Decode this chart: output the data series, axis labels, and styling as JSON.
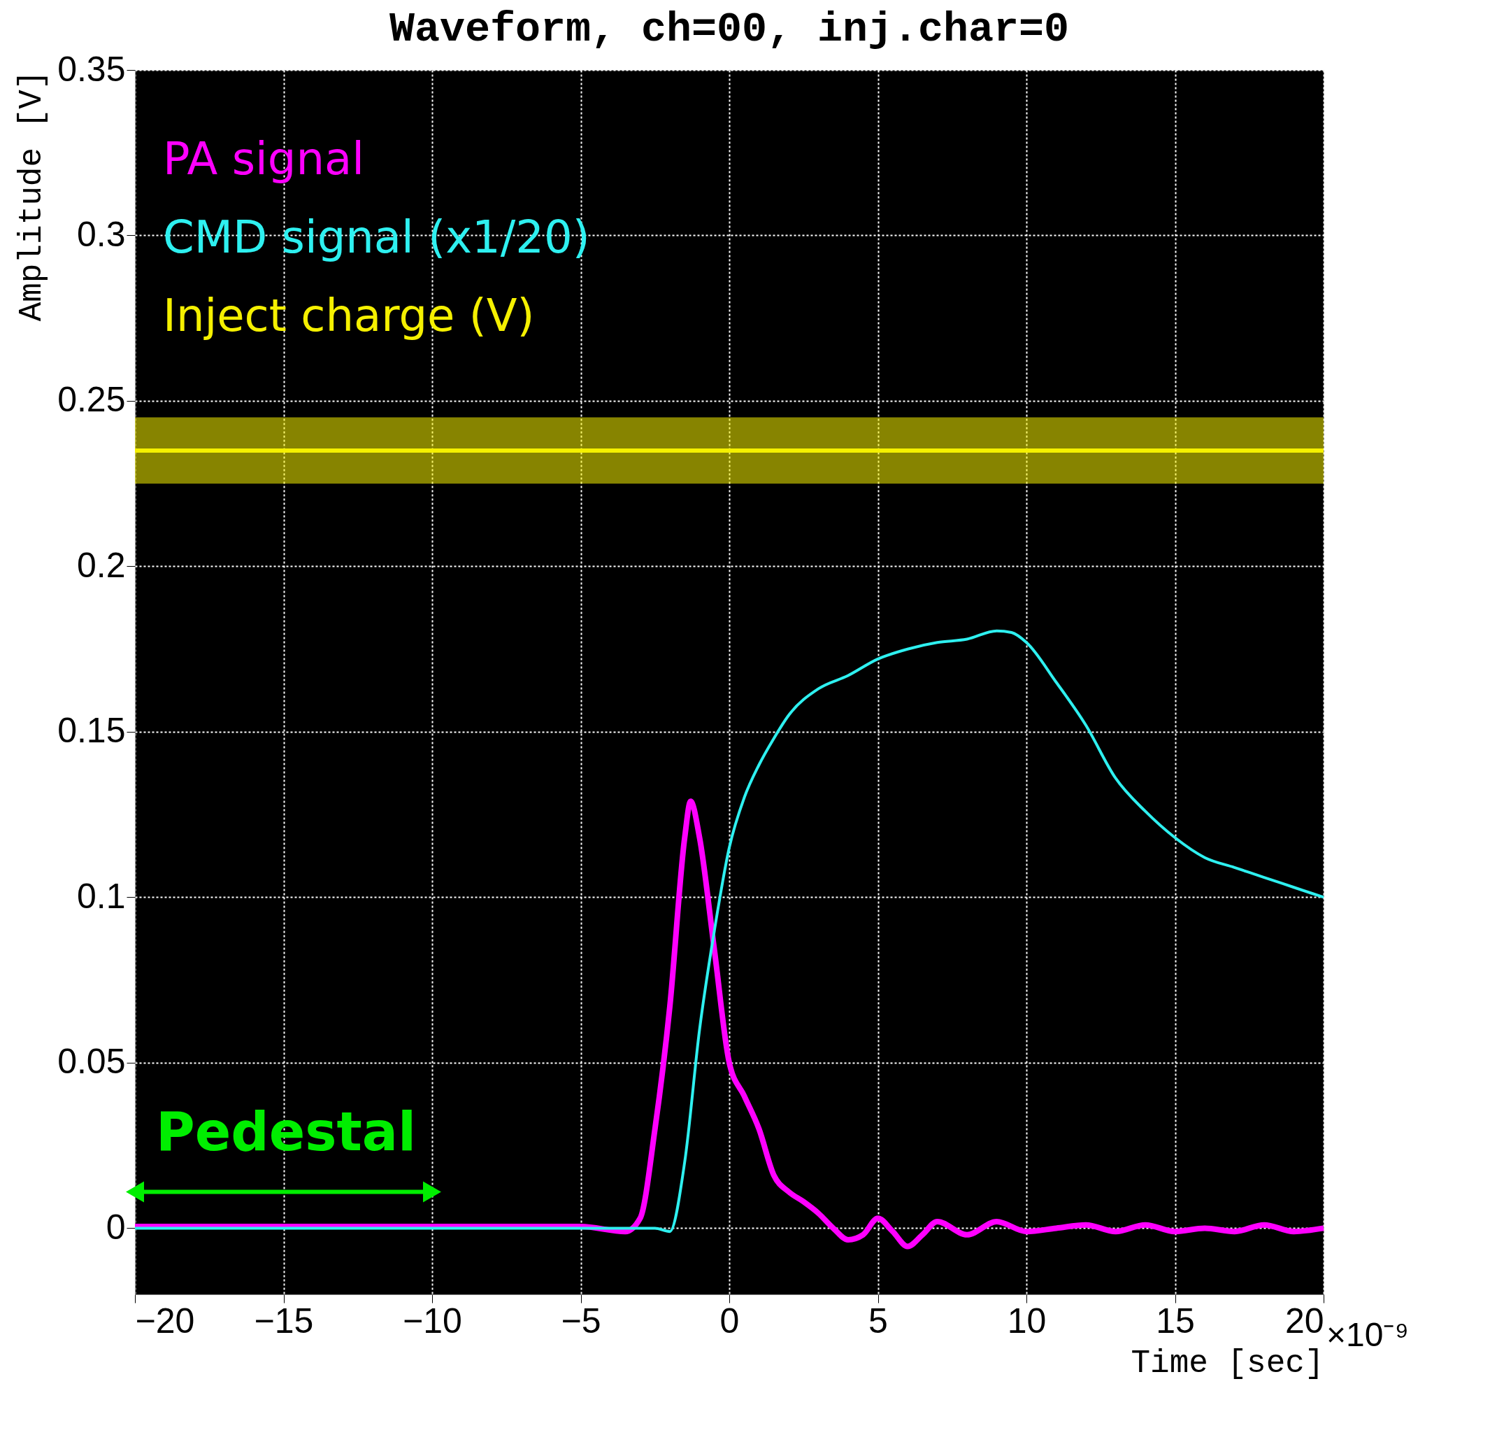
{
  "chart_data": {
    "type": "line",
    "title": "Waveform, ch=00, inj.char=0",
    "xlabel": "Time [sec]",
    "ylabel": "Amplitude [V]",
    "xlim": [
      -20,
      20
    ],
    "xticks": [
      -20,
      -15,
      -10,
      -5,
      0,
      5,
      10,
      15,
      20
    ],
    "ylim": [
      -0.02,
      0.35
    ],
    "yticks": [
      0,
      0.05,
      0.1,
      0.15,
      0.2,
      0.25,
      0.3,
      0.35
    ],
    "grid": true,
    "legend": "top left",
    "series": [
      {
        "name": "PA signal",
        "color": "#ff00ff",
        "x": [
          -20,
          -15,
          -10,
          -5,
          -3.5,
          -3,
          -2.5,
          -2,
          -1.5,
          -1.3,
          -1,
          -0.5,
          0,
          0.5,
          1,
          1.5,
          2,
          2.5,
          3,
          3.5,
          4,
          4.5,
          5,
          5.5,
          6,
          6.5,
          7,
          8,
          9,
          10,
          11,
          12,
          13,
          14,
          15,
          16,
          17,
          18,
          19,
          20
        ],
        "values": [
          0.0005,
          0.0005,
          0.0005,
          0.0005,
          -0.001,
          0.003,
          0.03,
          0.067,
          0.118,
          0.129,
          0.118,
          0.084,
          0.05,
          0.04,
          0.03,
          0.016,
          0.011,
          0.008,
          0.0045,
          0.0,
          -0.0035,
          -0.002,
          0.003,
          -0.001,
          -0.0055,
          -0.002,
          0.002,
          -0.002,
          0.002,
          -0.001,
          0.0,
          0.001,
          -0.001,
          0.001,
          -0.001,
          0.0,
          -0.001,
          0.001,
          -0.001,
          0.0
        ]
      },
      {
        "name": "CMD signal (x1/20)",
        "color": "#2ef0f0",
        "x": [
          -20,
          -10,
          -2.5,
          -2,
          -1.5,
          -1,
          -0.5,
          0,
          0.5,
          1,
          1.5,
          2,
          3,
          4,
          5,
          6,
          7,
          8,
          9,
          9.5,
          10,
          11,
          12,
          13,
          14,
          15,
          16,
          17,
          18,
          19,
          20
        ],
        "values": [
          0,
          0,
          0,
          -0.001,
          0.02,
          0.06,
          0.09,
          0.115,
          0.13,
          0.14,
          0.148,
          0.155,
          0.163,
          0.167,
          0.172,
          0.175,
          0.177,
          0.178,
          0.1805,
          0.18,
          0.177,
          0.165,
          0.152,
          0.136,
          0.126,
          0.118,
          0.112,
          0.109,
          0.106,
          0.103,
          0.1
        ]
      },
      {
        "name": "Inject charge (V)",
        "color": "#f5f000",
        "x": [
          -20,
          20
        ],
        "values": [
          0.235,
          0.235
        ],
        "lower": [
          0.225,
          0.225
        ],
        "upper": [
          0.245,
          0.245
        ]
      },
      {
        "color": "#00ee00",
        "x": [
          -20,
          -10
        ],
        "values": [
          0.011,
          0.011
        ],
        "marker": "triangle"
      }
    ],
    "annotations": [
      "Pedestal",
      "×10⁻⁹"
    ]
  }
}
